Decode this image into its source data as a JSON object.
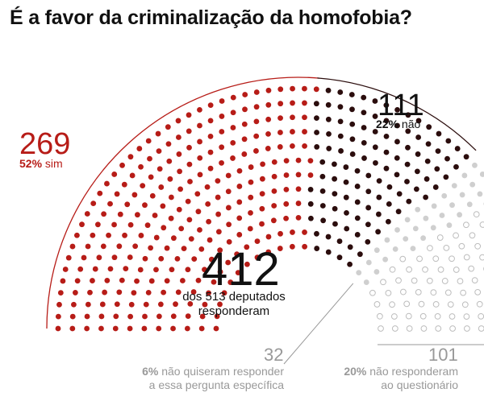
{
  "title": "É a favor da criminalização da homofobia?",
  "colors": {
    "sim": "#b71c17",
    "nao": "#2b0d0d",
    "nao_quiseram": "#cfcfcf",
    "nao_responderam": "#ffffff",
    "nao_responderam_stroke": "#bdbdbd",
    "annotation": "#999999"
  },
  "groups": {
    "sim": {
      "count": "269",
      "pct": "52%",
      "label": "sim"
    },
    "nao": {
      "count": "111",
      "pct": "22%",
      "label": "não"
    },
    "nao_quiseram": {
      "count": "32",
      "pct": "6%",
      "label_line1": "não quiseram responder",
      "label_line2": "a essa pergunta específica"
    },
    "nao_responderam": {
      "count": "101",
      "pct": "20%",
      "label_line1": "não responderam",
      "label_line2": "ao questionário"
    }
  },
  "center": {
    "count": "412",
    "line1": "dos 513 deputados",
    "line2": "responderam"
  },
  "chart_data": {
    "type": "hemicycle",
    "total": 513,
    "series": [
      {
        "name": "sim",
        "value": 269,
        "percent": 52
      },
      {
        "name": "não",
        "value": 111,
        "percent": 22
      },
      {
        "name": "não quiseram responder a essa pergunta específica",
        "value": 32,
        "percent": 6
      },
      {
        "name": "não responderam ao questionário",
        "value": 101,
        "percent": 20
      }
    ]
  }
}
